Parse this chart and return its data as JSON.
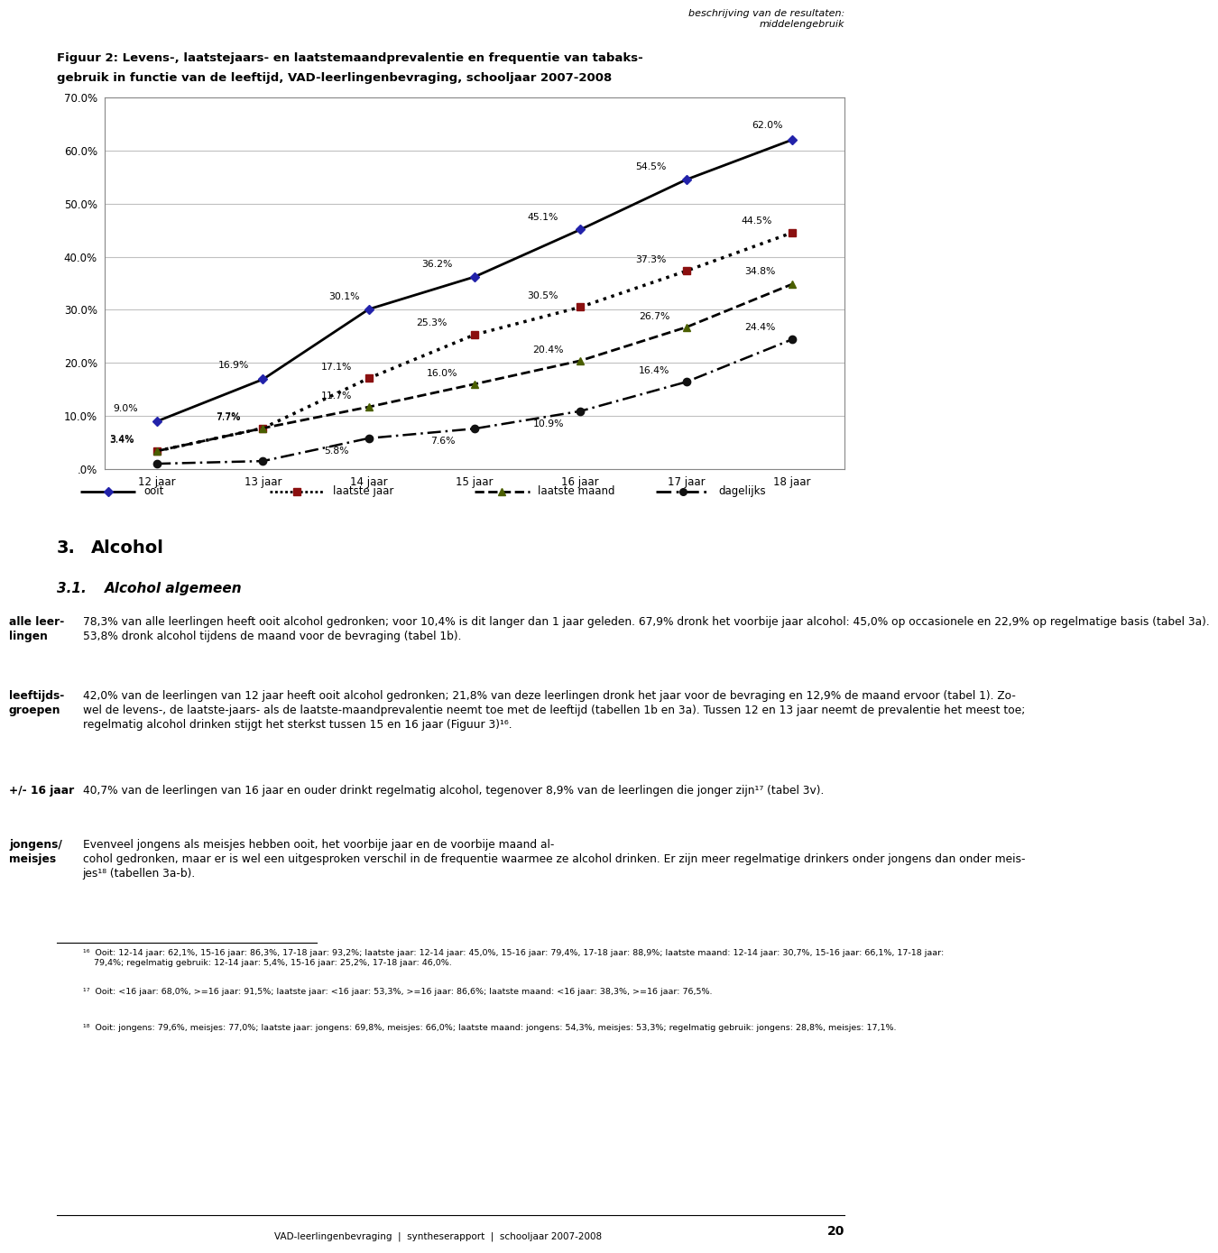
{
  "header_right": "beschrijving van de resultaten:\nmiddelengebruik",
  "title_line1": "Figuur 2: Levens-, laatstejaars- en laatstemaandprevalentie en frequentie van tabaks-",
  "title_line2": "gebruik in functie van de leeftijd, VAD-leerlingenbevraging, schooljaar 2007-2008",
  "x_labels": [
    "12 jaar",
    "13 jaar",
    "14 jaar",
    "15 jaar",
    "16 jaar",
    "17 jaar",
    "18 jaar"
  ],
  "x_values": [
    12,
    13,
    14,
    15,
    16,
    17,
    18
  ],
  "series": {
    "ooit": [
      9.0,
      16.9,
      30.1,
      36.2,
      45.1,
      54.5,
      62.0
    ],
    "laatste_jaar": [
      3.4,
      7.7,
      17.1,
      25.3,
      30.5,
      37.3,
      44.5
    ],
    "laatste_maand": [
      3.4,
      7.7,
      11.7,
      16.0,
      20.4,
      26.7,
      34.8
    ],
    "dagelijks": [
      1.0,
      1.5,
      5.8,
      7.6,
      10.9,
      16.4,
      24.4
    ]
  },
  "ylim": [
    0.0,
    70.0
  ],
  "yticks": [
    0.0,
    10.0,
    20.0,
    30.0,
    40.0,
    50.0,
    60.0,
    70.0
  ],
  "ytick_labels": [
    ".0%",
    "10.0%",
    "20.0%",
    "30.0%",
    "40.0%",
    "50.0%",
    "60.0%",
    "70.0%"
  ],
  "data_labels": {
    "ooit": [
      "9.0%",
      "16.9%",
      "30.1%",
      "36.2%",
      "45.1%",
      "54.5%",
      "62.0%"
    ],
    "laatste_jaar": [
      "3.4%",
      "7.7%",
      "17.1%",
      "25.3%",
      "30.5%",
      "37.3%",
      "44.5%"
    ],
    "laatste_maand": [
      "3.4%",
      "7.7%",
      "11.7%",
      "16.0%",
      "20.4%",
      "26.7%",
      "34.8%"
    ],
    "dagelijks": [
      "",
      "",
      "5.8%",
      "7.6%",
      "10.9%",
      "16.4%",
      "24.4%"
    ]
  },
  "left_labels": [
    "alle leer-\nlingen",
    "leeftijds-\ngroepen",
    "+/- 16 jaar",
    "jongens/\nmeisjes"
  ],
  "body_texts": [
    "78,3% van alle leerlingen heeft ooit alcohol gedronken; voor 10,4% is dit langer dan 1 jaar geleden. 67,9% dronk het voorbije jaar alcohol: 45,0% op occasionele en 22,9% op regelmatige basis (tabel 3a).\n53,8% dronk alcohol tijdens de maand voor de bevraging (tabel 1b).",
    "42,0% van de leerlingen van 12 jaar heeft ooit alcohol gedronken; 21,8% van deze leerlingen dronk het jaar voor de bevraging en 12,9% de maand ervoor (tabel 1). Zo-\nwel de levens-, de laatste­jaars- als de laatste­maandprevalentie neemt toe met de leeftijd (tabellen 1b en 3a). Tussen 12 en 13 jaar neemt de prevalentie het meest toe;\nregelmatig alcohol drinken stijgt het sterkst tussen 15 en 16 jaar (Figuur 3)¹⁶.",
    "40,7% van de leerlingen van 16 jaar en ouder drinkt regelmatig alcohol, tegenover 8,9% van de leerlingen die jonger zijn¹⁷ (tabel 3v).",
    "Evenveel jongens als meisjes hebben ooit, het voorbije jaar en de voorbije maand al-\ncohol gedronken, maar er is wel een uitgesproken verschil in de frequentie waarmee ze alcohol drinken. Er zijn meer regelmatige drinkers onder jongens dan onder meis-\njes¹⁸ (tabellen 3a-b)."
  ],
  "footnotes": [
    "¹⁶  Ooit: 12-14 jaar: 62,1%, 15-16 jaar: 86,3%, 17-18 jaar: 93,2%; laatste jaar: 12-14 jaar: 45,0%, 15-16 jaar: 79,4%, 17-18 jaar: 88,9%; laatste maand: 12-14 jaar: 30,7%, 15-16 jaar: 66,1%, 17-18 jaar:\n    79,4%; regelmatig gebruik: 12-14 jaar: 5,4%, 15-16 jaar: 25,2%, 17-18 jaar: 46,0%.",
    "¹⁷  Ooit: <16 jaar: 68,0%, >=16 jaar: 91,5%; laatste jaar: <16 jaar: 53,3%, >=16 jaar: 86,6%; laatste maand: <16 jaar: 38,3%, >=16 jaar: 76,5%.",
    "¹⁸  Ooit: jongens: 79,6%, meisjes: 77,0%; laatste jaar: jongens: 69,8%, meisjes: 66,0%; laatste maand: jongens: 54,3%, meisjes: 53,3%; regelmatig gebruik: jongens: 28,8%, meisjes: 17,1%."
  ],
  "footer": "VAD-leerlingenbevraging  |  syntheserapport  |  schooljaar 2007-2008",
  "page_number": "20",
  "background_color": "#ffffff",
  "grid_color": "#c0c0c0"
}
